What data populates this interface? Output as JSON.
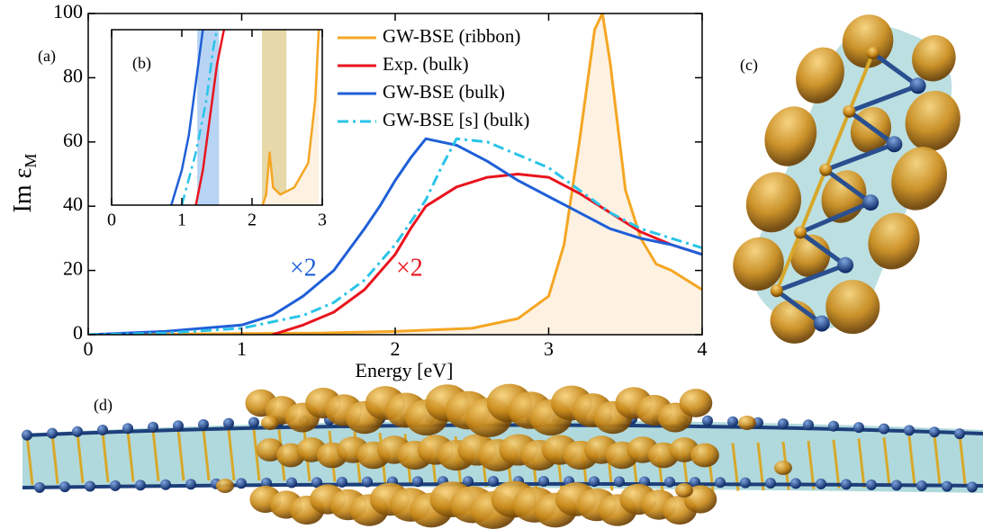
{
  "chart_data": [
    {
      "type": "line",
      "panel_label": "(a)",
      "xlabel": "Energy [eV]",
      "ylabel": {
        "text": "Im ε",
        "subscript": "M"
      },
      "xlim": [
        0,
        4
      ],
      "ylim": [
        0,
        100
      ],
      "xticks": [
        0,
        1,
        2,
        3,
        4
      ],
      "yticks": [
        0,
        20,
        40,
        60,
        80,
        100
      ],
      "series": [
        {
          "name": "GW-BSE (ribbon)",
          "color": "#f5a623",
          "dashed": false,
          "fill": "#fdf1e2",
          "x": [
            0,
            1.5,
            2.0,
            2.5,
            2.8,
            3.0,
            3.1,
            3.2,
            3.3,
            3.35,
            3.4,
            3.5,
            3.6,
            3.7,
            3.8,
            3.9,
            4.0
          ],
          "values": [
            0,
            0.5,
            1,
            2,
            5,
            12,
            28,
            60,
            95,
            100,
            85,
            45,
            30,
            22,
            20,
            17,
            14
          ]
        },
        {
          "name": "Exp. (bulk)",
          "color": "#e8141e",
          "dashed": false,
          "x": [
            1.2,
            1.4,
            1.6,
            1.8,
            2.0,
            2.1,
            2.2,
            2.4,
            2.6,
            2.8,
            3.0,
            3.2,
            3.4,
            3.6,
            3.8,
            4.0
          ],
          "values": [
            0,
            3,
            7,
            14,
            25,
            33,
            40,
            46,
            49,
            50,
            49,
            44,
            38,
            32,
            28,
            25
          ]
        },
        {
          "name": "GW-BSE (bulk)",
          "color": "#1f5fd8",
          "dashed": false,
          "x": [
            0,
            0.5,
            1.0,
            1.2,
            1.4,
            1.6,
            1.8,
            1.9,
            2.0,
            2.1,
            2.2,
            2.3,
            2.4,
            2.6,
            2.8,
            3.0,
            3.2,
            3.4,
            3.6,
            3.8,
            4.0
          ],
          "values": [
            0,
            1,
            3,
            6,
            12,
            20,
            33,
            40,
            48,
            55,
            61,
            60,
            59,
            54,
            48,
            43,
            38,
            33,
            30,
            28,
            25
          ]
        },
        {
          "name": "GW-BSE [s] (bulk)",
          "color": "#2ac4e8",
          "dashed": true,
          "x": [
            0,
            0.5,
            1.0,
            1.4,
            1.6,
            1.8,
            2.0,
            2.2,
            2.3,
            2.4,
            2.6,
            2.8,
            3.0,
            3.2,
            3.4,
            3.6,
            3.8,
            4.0
          ],
          "values": [
            0,
            0.5,
            2,
            6,
            10,
            17,
            28,
            42,
            52,
            61,
            60,
            56,
            52,
            45,
            38,
            33,
            30,
            27
          ]
        }
      ],
      "annotations": [
        {
          "text": "×2",
          "color": "#1f5fd8"
        },
        {
          "text": "×2",
          "color": "#e8141e"
        }
      ]
    },
    {
      "type": "line",
      "panel_label": "(b)",
      "xlim": [
        0,
        3
      ],
      "ylim": [
        0,
        5
      ],
      "xticks": [
        0,
        1,
        2,
        3
      ],
      "shaded_ranges": [
        {
          "xlim": [
            1.22,
            1.53
          ],
          "color": "#b8d4f4"
        },
        {
          "xlim": [
            2.14,
            2.49
          ],
          "color": "#e6d8a8"
        }
      ],
      "series": [
        {
          "color": "#f5a623",
          "dashed": false,
          "fill": "#fdf1e2",
          "x": [
            2.15,
            2.2,
            2.25,
            2.3,
            2.4,
            2.6,
            2.8,
            2.9,
            2.95
          ],
          "values": [
            0,
            0.3,
            1.5,
            0.5,
            0.3,
            0.5,
            1.2,
            3,
            5
          ]
        },
        {
          "color": "#e8141e",
          "dashed": false,
          "x": [
            1.2,
            1.3,
            1.4,
            1.5,
            1.6
          ],
          "values": [
            0,
            1,
            2.5,
            4,
            5
          ]
        },
        {
          "color": "#1f5fd8",
          "dashed": false,
          "x": [
            0.85,
            1.0,
            1.1,
            1.2,
            1.3
          ],
          "values": [
            0,
            1,
            2,
            3.5,
            5
          ]
        },
        {
          "color": "#2ac4e8",
          "dashed": true,
          "x": [
            1.0,
            1.2,
            1.35,
            1.45,
            1.5
          ],
          "values": [
            0,
            1.5,
            3,
            4.5,
            5
          ]
        }
      ]
    }
  ],
  "panel_labels": [
    "(c)",
    "(d)"
  ]
}
